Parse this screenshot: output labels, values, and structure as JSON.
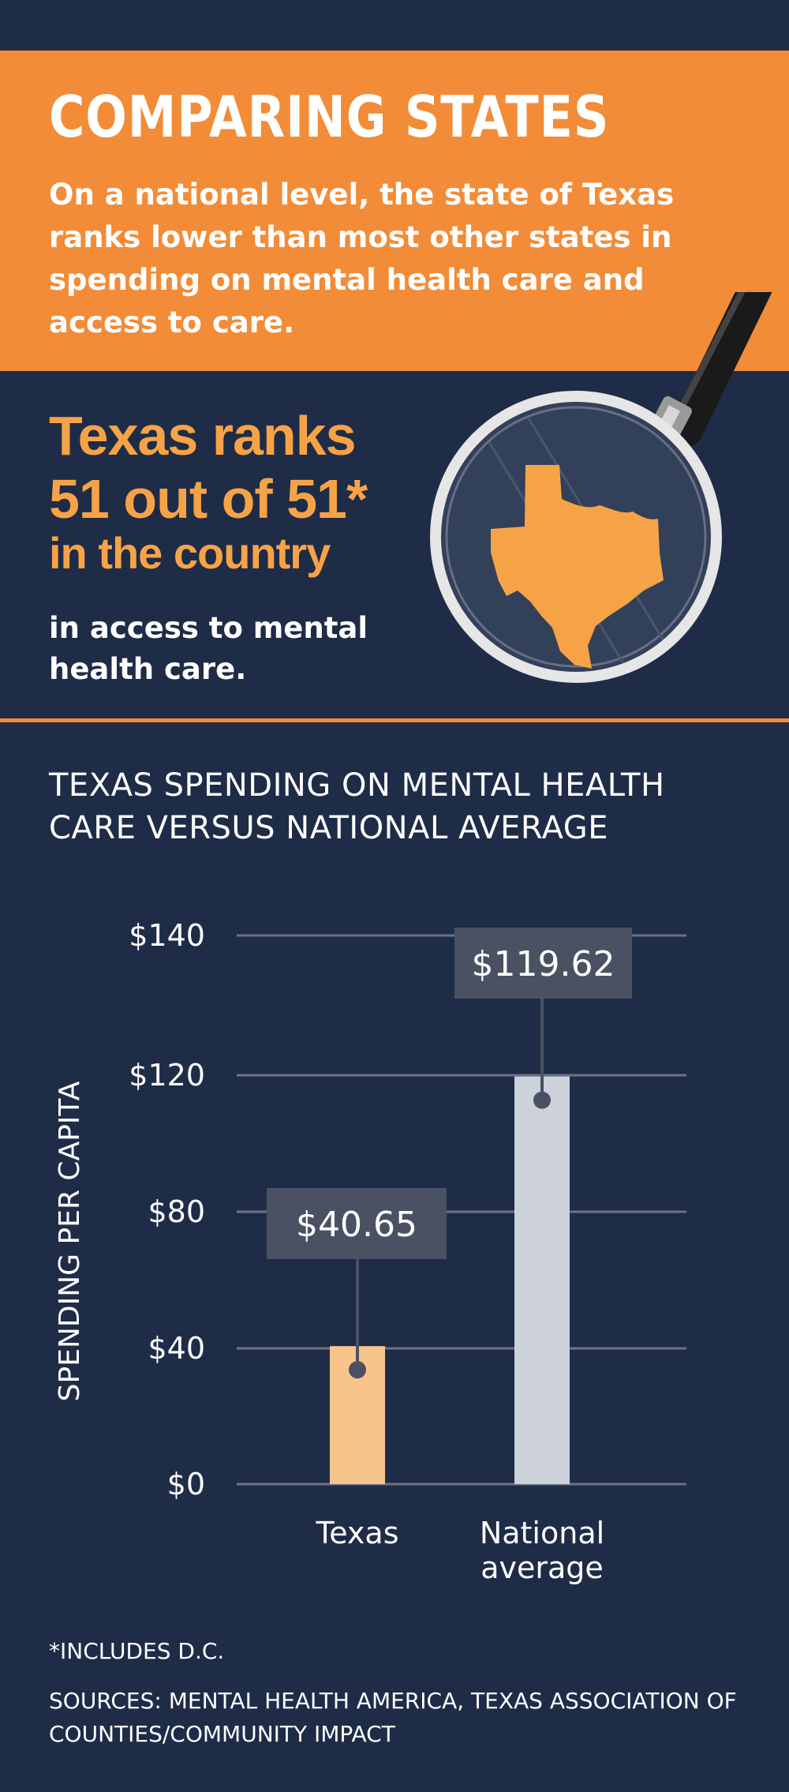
{
  "header": {
    "headline": "COMPARING STATES",
    "intro": "On a national level, the state of Texas ranks lower than most other states in spending on mental health care and access to care."
  },
  "ranking": {
    "line1": "Texas ranks",
    "line2": "51 out of 51*",
    "line3": "in the country",
    "note": "in access to mental health care."
  },
  "colors": {
    "navy": "#1f2c47",
    "orange": "#f28c38",
    "orange_text": "#f6a347",
    "texas_bar": "#f7c48b",
    "national_bar": "#cdd1da",
    "label_box": "#4a5163"
  },
  "chart_data": {
    "type": "bar",
    "title": "TEXAS SPENDING ON MENTAL HEALTH CARE VERSUS NATIONAL AVERAGE",
    "ylabel": "SPENDING PER CAPITA",
    "xlabel": "",
    "categories": [
      "Texas",
      "National average"
    ],
    "values": [
      40.65,
      119.62
    ],
    "data_labels": [
      "$40.65",
      "$119.62"
    ],
    "yticks": [
      {
        "value": 0,
        "label": "$0"
      },
      {
        "value": 40,
        "label": "$40"
      },
      {
        "value": 80,
        "label": "$80"
      },
      {
        "value": 120,
        "label": "$120"
      },
      {
        "value": 140,
        "label": "$140"
      }
    ],
    "ylim": [
      0,
      140
    ],
    "grid": true
  },
  "footer": {
    "footnote": "*INCLUDES D.C.",
    "sources": "SOURCES: MENTAL HEALTH AMERICA, TEXAS ASSOCIATION OF COUNTIES/COMMUNITY IMPACT"
  }
}
